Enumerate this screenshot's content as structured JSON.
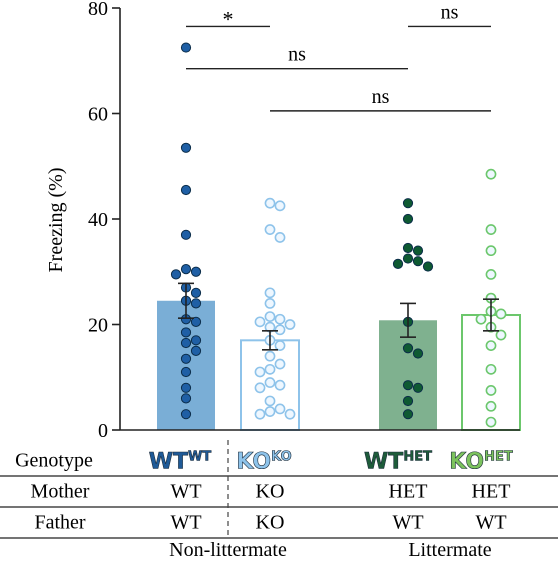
{
  "chart_data": {
    "type": "bar",
    "ylabel": "Freezing (%)",
    "ylim": [
      0,
      80
    ],
    "yticks": [
      0,
      20,
      40,
      60,
      80
    ],
    "grid": false,
    "groups": [
      {
        "name": "WT",
        "superscript": "WT",
        "label_color": "#1f5a97",
        "bar_color": "#7aaed6",
        "point_color": "#1f5fa5",
        "hollow": false,
        "mean": 24.5,
        "sem": 3.3,
        "points": [
          72.5,
          53.5,
          45.5,
          37.0,
          30.5,
          30.0,
          29.5,
          27.0,
          26.0,
          24.5,
          24.0,
          21.0,
          20.5,
          18.5,
          17.0,
          16.5,
          15.0,
          13.5,
          11.0,
          8.0,
          6.0,
          3.0
        ]
      },
      {
        "name": "KO",
        "superscript": "KO",
        "label_color": "#8ec3ea",
        "bar_color": "#ffffff",
        "point_color": "#8ec3ea",
        "hollow": true,
        "mean": 17.0,
        "sem": 1.8,
        "points": [
          43.0,
          42.5,
          38.0,
          36.5,
          26.0,
          24.0,
          21.5,
          21.0,
          20.5,
          20.0,
          19.5,
          19.0,
          17.0,
          16.0,
          14.0,
          12.5,
          11.5,
          11.0,
          9.0,
          8.5,
          8.0,
          5.5,
          4.0,
          3.5,
          3.0,
          3.0
        ]
      },
      {
        "name": "WT",
        "superscript": "HET",
        "label_color": "#1e5c3a",
        "bar_color": "#7fb18f",
        "point_color": "#0e5a32",
        "hollow": false,
        "mean": 20.8,
        "sem": 3.2,
        "points": [
          43.0,
          40.0,
          34.5,
          34.0,
          32.5,
          32.0,
          31.5,
          31.0,
          20.5,
          15.5,
          14.5,
          8.5,
          8.0,
          5.5,
          3.0
        ]
      },
      {
        "name": "KO",
        "superscript": "HET",
        "label_color": "#7cc35e",
        "bar_color": "#ffffff",
        "point_color": "#6cc76c",
        "hollow": true,
        "mean": 21.8,
        "sem": 3.0,
        "points": [
          48.5,
          38.0,
          34.0,
          29.5,
          25.0,
          22.5,
          22.0,
          21.0,
          19.5,
          18.0,
          16.0,
          11.5,
          7.5,
          4.5,
          1.5
        ]
      }
    ],
    "annotations": [
      {
        "from": 0,
        "to": 1,
        "y": 76.5,
        "text": "*"
      },
      {
        "from": 2,
        "to": 3,
        "y": 76.5,
        "text": "ns"
      },
      {
        "from": 0,
        "to": 2,
        "y": 68.5,
        "text": "ns"
      },
      {
        "from": 1,
        "to": 3,
        "y": 60.5,
        "text": "ns"
      }
    ],
    "table": {
      "rows": [
        {
          "label": "Genotype",
          "cells": [
            "",
            "",
            "",
            ""
          ]
        },
        {
          "label": "Mother",
          "cells": [
            "WT",
            "KO",
            "HET",
            "HET"
          ]
        },
        {
          "label": "Father",
          "cells": [
            "WT",
            "KO",
            "WT",
            "WT"
          ]
        }
      ],
      "categories": [
        "Non-littermate",
        "Littermate"
      ]
    }
  }
}
